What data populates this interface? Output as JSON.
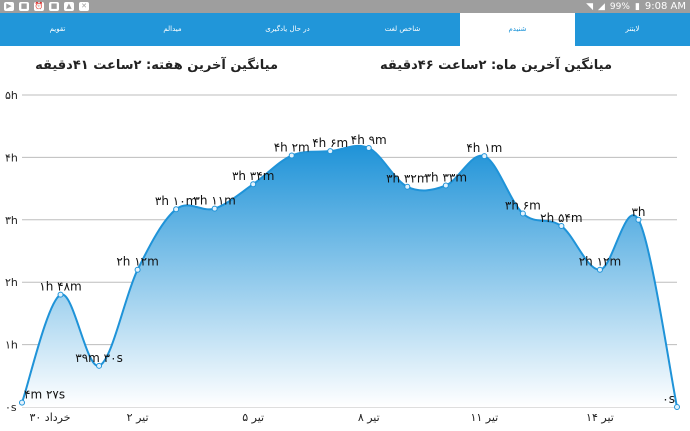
{
  "status_bar": {
    "battery": "99%",
    "time": "9:08 AM"
  },
  "tabs": [
    {
      "label": "تقویم",
      "active": false
    },
    {
      "label": "میدالم",
      "active": false
    },
    {
      "label": "در حال یادگیری",
      "active": false
    },
    {
      "label": "شاخص لغت",
      "active": false
    },
    {
      "label": "شنیدم",
      "active": true
    },
    {
      "label": "لایتنر",
      "active": false
    }
  ],
  "stats": {
    "month_avg": "میانگین آخرین ماه: ۲ساعت ۴۶دقیقه",
    "week_avg": "میانگین آخرین هفته: ۲ساعت ۴۱دقیقه"
  },
  "chart_data": {
    "type": "area",
    "color": "#2196d9",
    "y_ticks": [
      "۰s",
      "۱h",
      "۲h",
      "۳h",
      "۴h",
      "۵h"
    ],
    "ylim": [
      0,
      5
    ],
    "x_ticks": [
      "۳۰ خرداد",
      "۲ تیر",
      "۵ تیر",
      "۸ تیر",
      "۱۱ تیر",
      "۱۴ تیر"
    ],
    "points": [
      {
        "y": 0.07,
        "label": "۴m ۲۷s"
      },
      {
        "y": 1.8,
        "label": "۱h ۴۸m"
      },
      {
        "y": 0.66,
        "label": "۳۹m ۳۰s"
      },
      {
        "y": 2.2,
        "label": "۲h ۱۲m"
      },
      {
        "y": 3.17,
        "label": "۳h ۱۰m"
      },
      {
        "y": 3.18,
        "label": "۳h ۱۱m"
      },
      {
        "y": 3.57,
        "label": "۳h ۳۴m"
      },
      {
        "y": 4.03,
        "label": "۴h ۲m"
      },
      {
        "y": 4.1,
        "label": "۴h ۶m"
      },
      {
        "y": 4.15,
        "label": "۴h ۹m"
      },
      {
        "y": 3.53,
        "label": "۳h ۳۲m"
      },
      {
        "y": 3.55,
        "label": "۳h ۳۳m"
      },
      {
        "y": 4.02,
        "label": "۴h ۱m"
      },
      {
        "y": 3.1,
        "label": "۳h ۶m"
      },
      {
        "y": 2.9,
        "label": "۲h ۵۴m"
      },
      {
        "y": 2.2,
        "label": "۲h ۱۲m"
      },
      {
        "y": 3.0,
        "label": "۳h"
      },
      {
        "y": 0.0,
        "label": "۰s"
      }
    ]
  }
}
